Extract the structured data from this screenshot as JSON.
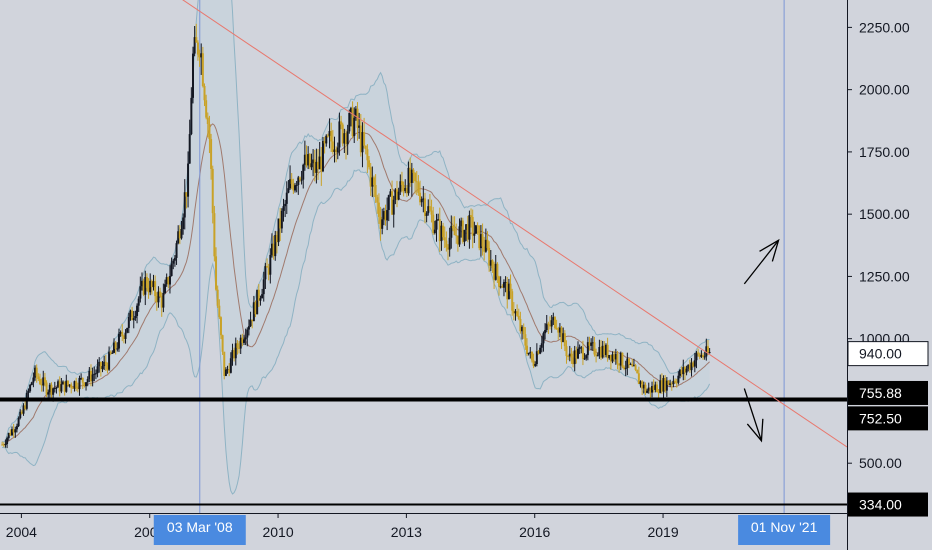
{
  "chart_data": {
    "type": "candlestick",
    "ylim": [
      300,
      2360
    ],
    "xlim": [
      2003.5,
      2023.3
    ],
    "y_ticks": [
      {
        "value": 500,
        "label": "500.00"
      },
      {
        "value": 1000,
        "label": "1000.00"
      },
      {
        "value": 1250,
        "label": "1250.00"
      },
      {
        "value": 1500,
        "label": "1500.00"
      },
      {
        "value": 1750,
        "label": "1750.00"
      },
      {
        "value": 2000,
        "label": "2000.00"
      },
      {
        "value": 2250,
        "label": "2250.00"
      }
    ],
    "x_ticks": [
      {
        "value": 2004,
        "label": "2004"
      },
      {
        "value": 2007,
        "label": "2007"
      },
      {
        "value": 2010,
        "label": "2010"
      },
      {
        "value": 2013,
        "label": "2013"
      },
      {
        "value": 2016,
        "label": "2016"
      },
      {
        "value": 2019,
        "label": "2019"
      }
    ],
    "price_tags": [
      {
        "value": 940,
        "label": "940.00",
        "style": "light"
      },
      {
        "value": 782,
        "label": "755.88",
        "style": "dark"
      },
      {
        "value": 680,
        "label": "752.50",
        "style": "dark"
      },
      {
        "value": 334,
        "label": "334.00",
        "style": "dark"
      }
    ],
    "date_tags": [
      {
        "x": 2008.17,
        "label": "03 Mar '08"
      },
      {
        "x": 2021.83,
        "label": "01 Nov '21"
      }
    ],
    "horizontal_lines": [
      {
        "value": 756,
        "width": 4
      },
      {
        "value": 334,
        "width": 2
      }
    ],
    "vertical_lines": [
      2008.17,
      2021.83
    ],
    "trendline": {
      "from": {
        "x": 2007.0,
        "y": 2450
      },
      "to": {
        "x": 2023.3,
        "y": 565
      }
    },
    "arrows": [
      {
        "from": {
          "x": 2020.9,
          "y": 1220
        },
        "to": {
          "x": 2021.7,
          "y": 1395
        }
      },
      {
        "from": {
          "x": 2020.9,
          "y": 800
        },
        "to": {
          "x": 2021.3,
          "y": 590
        }
      }
    ],
    "colors": {
      "background": "#d1d4dc",
      "up_candle": "#131722",
      "down_candle": "#c9a227",
      "band": "#8fb3c4",
      "band_fill": "#c5d3dc",
      "midline": "#a07a6e",
      "trendline": "#e8786e",
      "vline": "#7d96d6",
      "date_tag": "#4a8ae0"
    },
    "price_path": [
      [
        2003.55,
        575
      ],
      [
        2004.0,
        690
      ],
      [
        2004.3,
        860
      ],
      [
        2004.6,
        800
      ],
      [
        2005.0,
        810
      ],
      [
        2005.5,
        835
      ],
      [
        2006.0,
        900
      ],
      [
        2006.4,
        1030
      ],
      [
        2006.6,
        1100
      ],
      [
        2006.9,
        1230
      ],
      [
        2007.3,
        1150
      ],
      [
        2007.6,
        1350
      ],
      [
        2007.9,
        1650
      ],
      [
        2008.0,
        2120
      ],
      [
        2008.17,
        2200
      ],
      [
        2008.4,
        1800
      ],
      [
        2008.55,
        1200
      ],
      [
        2008.75,
        850
      ],
      [
        2009.0,
        950
      ],
      [
        2009.4,
        1100
      ],
      [
        2009.8,
        1300
      ],
      [
        2010.0,
        1430
      ],
      [
        2010.3,
        1620
      ],
      [
        2010.6,
        1700
      ],
      [
        2010.9,
        1680
      ],
      [
        2011.2,
        1790
      ],
      [
        2011.5,
        1830
      ],
      [
        2011.8,
        1880
      ],
      [
        2012.1,
        1700
      ],
      [
        2012.4,
        1480
      ],
      [
        2012.7,
        1560
      ],
      [
        2013.0,
        1640
      ],
      [
        2013.3,
        1600
      ],
      [
        2013.6,
        1480
      ],
      [
        2013.9,
        1400
      ],
      [
        2014.2,
        1420
      ],
      [
        2014.5,
        1450
      ],
      [
        2014.8,
        1380
      ],
      [
        2015.1,
        1260
      ],
      [
        2015.4,
        1180
      ],
      [
        2015.7,
        1020
      ],
      [
        2015.95,
        900
      ],
      [
        2016.2,
        1020
      ],
      [
        2016.5,
        1080
      ],
      [
        2016.8,
        920
      ],
      [
        2017.1,
        950
      ],
      [
        2017.5,
        960
      ],
      [
        2017.9,
        930
      ],
      [
        2018.3,
        870
      ],
      [
        2018.6,
        790
      ],
      [
        2018.9,
        810
      ],
      [
        2019.2,
        830
      ],
      [
        2019.5,
        870
      ],
      [
        2019.8,
        930
      ],
      [
        2020.1,
        940
      ]
    ]
  }
}
